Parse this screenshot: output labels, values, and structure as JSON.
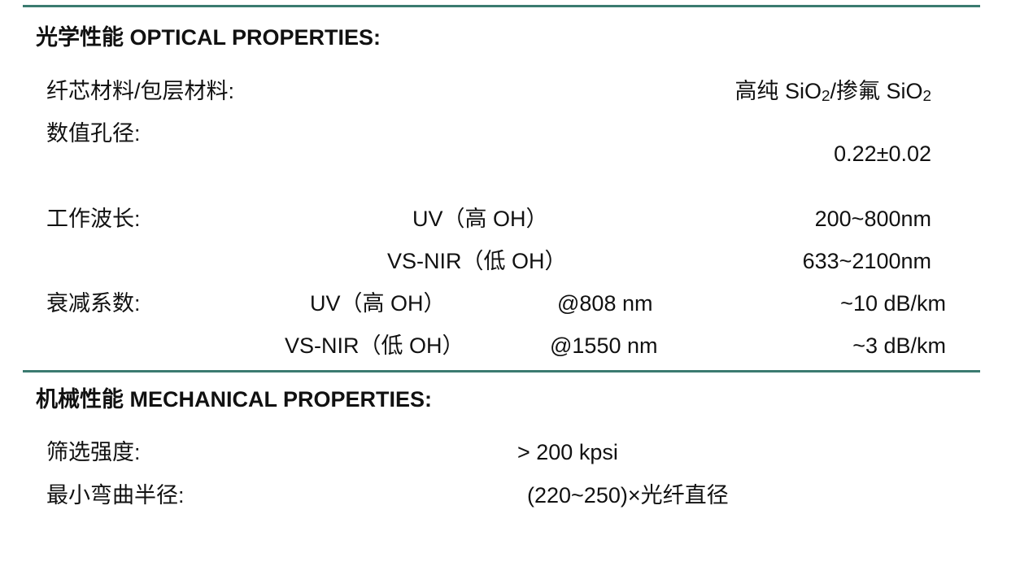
{
  "optical": {
    "heading": "光学性能  OPTICAL PROPERTIES:",
    "material": {
      "label": "纤芯材料/包层材料:",
      "value_a": "高纯 SiO",
      "sub_a": "2",
      "value_b": "/掺氟 SiO",
      "sub_b": "2"
    },
    "na": {
      "label": "数值孔径:",
      "value": "0.22±0.02"
    },
    "wavelength": {
      "label": "工作波长:",
      "rows": [
        {
          "type": "UV（高 OH）",
          "range": "200~800nm"
        },
        {
          "type": "VS-NIR（低 OH）",
          "range": "633~2100nm"
        }
      ]
    },
    "attenuation": {
      "label": "衰减系数:",
      "rows": [
        {
          "type": "UV（高 OH）",
          "at": "@808 nm",
          "value": "~10 dB/km"
        },
        {
          "type": "VS-NIR（低 OH）",
          "at": "@1550 nm",
          "value": "~3 dB/km"
        }
      ]
    }
  },
  "mechanical": {
    "heading": "机械性能  MECHANICAL PROPERTIES:",
    "proof": {
      "label": "筛选强度:",
      "value": "> 200 kpsi"
    },
    "bend": {
      "label": "最小弯曲半径:",
      "value": "(220~250)×光纤直径"
    }
  },
  "colors": {
    "rule": "#3b7b70"
  }
}
